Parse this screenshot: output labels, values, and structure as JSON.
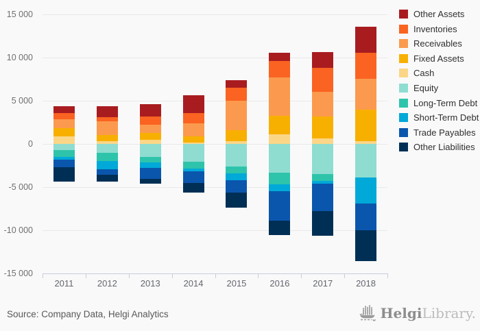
{
  "chart_data": {
    "type": "bar",
    "stacked": true,
    "orientation": "vertical",
    "title": "",
    "xlabel": "",
    "ylabel": "",
    "grid": true,
    "legend_position": "top-right",
    "ylim": [
      -15000,
      15000
    ],
    "categories": [
      "2011",
      "2012",
      "2013",
      "2014",
      "2015",
      "2016",
      "2017",
      "2018"
    ],
    "yticks": [
      {
        "value": 15000,
        "label": "15 000"
      },
      {
        "value": 10000,
        "label": "10 000"
      },
      {
        "value": 5000,
        "label": "5 000"
      },
      {
        "value": 0,
        "label": "0"
      },
      {
        "value": -5000,
        "label": "-5 000"
      },
      {
        "value": -10000,
        "label": "-10 000"
      },
      {
        "value": -15000,
        "label": "-15 000"
      }
    ],
    "series": [
      {
        "name": "Other Assets",
        "color": "#a81c20",
        "values": [
          800,
          1290,
          1430,
          2050,
          870,
          950,
          1870,
          3000
        ]
      },
      {
        "name": "Inventories",
        "color": "#fa6321",
        "values": [
          750,
          500,
          930,
          1190,
          1510,
          1910,
          2770,
          3040
        ]
      },
      {
        "name": "Receivables",
        "color": "#fb9a4e",
        "values": [
          1000,
          1540,
          1000,
          1450,
          3380,
          4490,
          2850,
          3510
        ]
      },
      {
        "name": "Fixed Assets",
        "color": "#f8b000",
        "values": [
          930,
          720,
          790,
          770,
          1270,
          2120,
          2500,
          3690
        ]
      },
      {
        "name": "Cash",
        "color": "#fbd687",
        "values": [
          900,
          340,
          450,
          140,
          320,
          1110,
          660,
          310
        ]
      },
      {
        "name": "Equity",
        "color": "#8fdcd1",
        "values": [
          -700,
          -1060,
          -1500,
          -2100,
          -2650,
          -3330,
          -3500,
          -3890
        ]
      },
      {
        "name": "Long-Term Debt",
        "color": "#2ec4ab",
        "values": [
          -820,
          -930,
          -670,
          -790,
          -800,
          -1350,
          -800,
          0
        ]
      },
      {
        "name": "Short-Term Debt",
        "color": "#00a9d8",
        "values": [
          -270,
          -930,
          -600,
          -290,
          -750,
          -795,
          -340,
          -2990
        ]
      },
      {
        "name": "Trade Payables",
        "color": "#0a56ad",
        "values": [
          -870,
          -660,
          -1300,
          -1330,
          -1400,
          -3390,
          -3120,
          -3100
        ]
      },
      {
        "name": "Other Liabilities",
        "color": "#002f55",
        "values": [
          -1720,
          -810,
          -530,
          -1090,
          -1750,
          -1715,
          -2890,
          -3570
        ]
      }
    ]
  },
  "footer": {
    "source": "Source: Company Data, Helgi Analytics",
    "logo_bold": "Helgi",
    "logo_light": "Library."
  },
  "style": {
    "background": "#f9f9f9",
    "gridline_color": "#e9e9e9",
    "axis_color": "#c7ccda",
    "tick_label_color": "#6f6f6f"
  }
}
